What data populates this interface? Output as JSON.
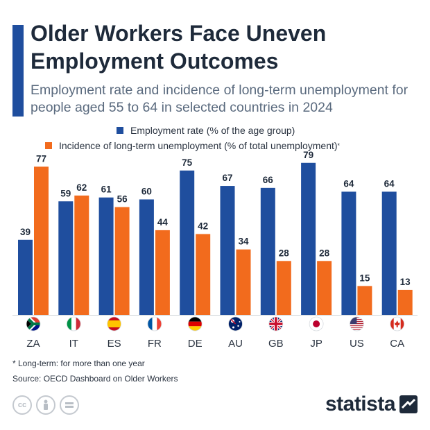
{
  "header": {
    "title": "Older Workers Face Uneven Employment Outcomes",
    "subtitle": "Employment rate and incidence of long-term unemployment for people aged 55 to 64 in selected countries in 2024"
  },
  "legend": {
    "series1": "Employment rate (% of the age group)",
    "series2": "Incidence of long-term unemployment (% of total unemployment)",
    "series2_marker": "*"
  },
  "colors": {
    "accent": "#1f4e9e",
    "series1": "#1f4e9e",
    "series2": "#f26b1d",
    "text": "#1e2a3a"
  },
  "chart_data": {
    "type": "bar",
    "categories": [
      "ZA",
      "IT",
      "ES",
      "FR",
      "DE",
      "AU",
      "GB",
      "JP",
      "US",
      "CA"
    ],
    "flags": [
      "south-africa-flag",
      "italy-flag",
      "spain-flag",
      "france-flag",
      "germany-flag",
      "australia-flag",
      "united-kingdom-flag",
      "japan-flag",
      "united-states-flag",
      "canada-flag"
    ],
    "series": [
      {
        "name": "Employment rate (% of the age group)",
        "values": [
          39,
          59,
          61,
          60,
          75,
          67,
          66,
          79,
          64,
          64
        ]
      },
      {
        "name": "Incidence of long-term unemployment (% of total unemployment)",
        "values": [
          77,
          62,
          56,
          44,
          42,
          34,
          28,
          28,
          15,
          13
        ]
      }
    ],
    "ylim": [
      0,
      80
    ],
    "grid": false,
    "legend_position": "top"
  },
  "footer": {
    "footnote": "* Long-term: for more than one year",
    "source": "Source: OECD Dashboard on Older Workers",
    "brand": "statista",
    "license_icons": [
      "cc-icon",
      "attribution-icon",
      "no-derivatives-icon"
    ]
  }
}
